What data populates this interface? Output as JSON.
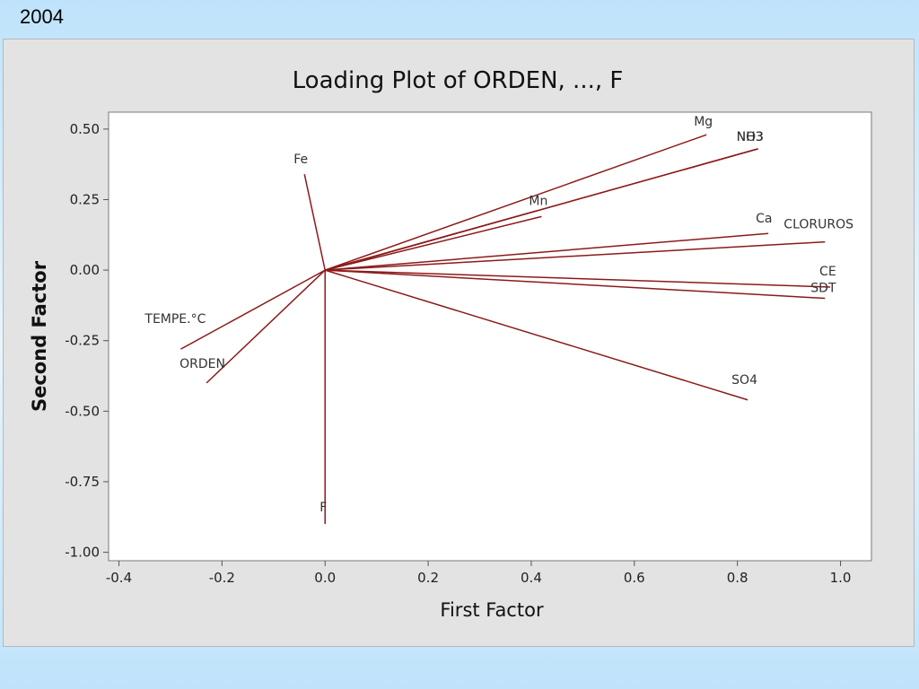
{
  "slide": {
    "number_label": "2004"
  },
  "chart_data": {
    "type": "scatter",
    "subtype": "loading-plot",
    "title": "Loading Plot of ORDEN, ..., F",
    "xlabel": "First Factor",
    "ylabel": "Second Factor",
    "xlim": [
      -0.42,
      1.06
    ],
    "ylim": [
      -1.03,
      0.56
    ],
    "x_ticks": [
      -0.4,
      -0.2,
      0.0,
      0.2,
      0.4,
      0.6,
      0.8,
      1.0
    ],
    "x_tick_labels": [
      "-0.4",
      "-0.2",
      "0.0",
      "0.2",
      "0.4",
      "0.6",
      "0.8",
      "1.0"
    ],
    "y_ticks": [
      0.5,
      0.25,
      0.0,
      -0.25,
      -0.5,
      -0.75,
      -1.0
    ],
    "y_tick_labels": [
      "0.50",
      "0.25",
      "0.00",
      "-0.25",
      "-0.50",
      "-0.75",
      "-1.00"
    ],
    "grid": false,
    "line_color": "#8b1a1a",
    "points": [
      {
        "label": "Mg",
        "x": 0.74,
        "y": 0.48
      },
      {
        "label": "NO3",
        "x": 0.84,
        "y": 0.43
      },
      {
        "label": "NH3",
        "x": 0.84,
        "y": 0.43
      },
      {
        "label": "Fe",
        "x": -0.04,
        "y": 0.34
      },
      {
        "label": "Mn",
        "x": 0.42,
        "y": 0.19
      },
      {
        "label": "Mn",
        "x": 0.41,
        "y": 0.21
      },
      {
        "label": "Ca",
        "x": 0.86,
        "y": 0.13
      },
      {
        "label": "CLORUROS",
        "x": 0.97,
        "y": 0.1
      },
      {
        "label": "CE",
        "x": 0.98,
        "y": -0.06
      },
      {
        "label": "SDT",
        "x": 0.97,
        "y": -0.1
      },
      {
        "label": "SO4",
        "x": 0.82,
        "y": -0.46
      },
      {
        "label": "TEMPE.°C",
        "x": -0.28,
        "y": -0.28
      },
      {
        "label": "ORDEN",
        "x": -0.23,
        "y": -0.4
      },
      {
        "label": "F",
        "x": 0.0,
        "y": -0.9
      }
    ]
  }
}
